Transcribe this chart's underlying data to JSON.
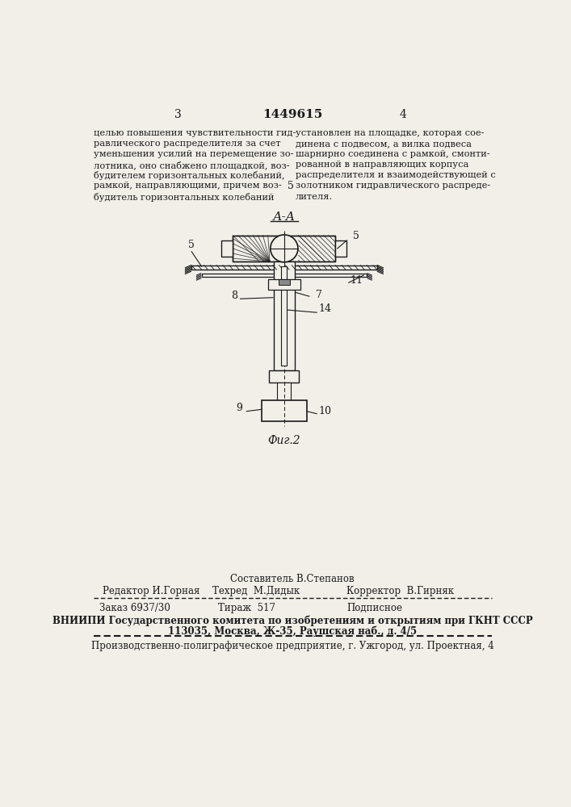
{
  "page_number_left": "3",
  "page_number_center": "1449615",
  "page_number_right": "4",
  "text_left_col": [
    "целью повышения чувствительности гид-",
    "равлического распределителя за счет",
    "уменьшения усилий на перемещение зо-",
    "лотника, оно снабжено площадкой, воз-",
    "будителем горизонтальных колебаний,",
    "рамкой, направляющими, причем воз-",
    "будитель горизонтальных колебаний"
  ],
  "text_right_col": [
    "установлен на площадке, которая сое-",
    "динена с подвесом, а вилка подвеса",
    "шарнирно соединена с рамкой, смонти-",
    "рованной в направляющих корпуса",
    "распределителя и взаимодействующей с",
    "золотником гидравлического распреде-",
    "лителя."
  ],
  "middle_number": "5",
  "fig_label": "Фиг.2",
  "section_label": "А-А",
  "part_labels": {
    "5_left": "5",
    "5_right": "5",
    "7": "7",
    "8": "8",
    "9": "9",
    "10": "10",
    "11": "11",
    "14": "14"
  },
  "footer_composer_label": "Составитель В.Степанов",
  "footer_editor": "Редактор И.Горная",
  "footer_techred": "Техред  М.Дидык",
  "footer_corrector": "Корректор  В.Гирняк",
  "footer_order": "Заказ 6937/30",
  "footer_tirazh": "Тираж  517",
  "footer_podpisnoe": "Подписное",
  "footer_vniipи": "ВНИИПИ Государственного комитета по изобретениям и открытиям при ГКНТ СССР",
  "footer_address": "113035, Москва, Ж-35, Раушская наб., д. 4/5",
  "footer_production": "Производственно-полиграфическое предприятие, г. Ужгород, ул. Проектная, 4",
  "bg_color": "#f2efe9",
  "line_color": "#1a1a1a",
  "text_color": "#1a1a1a"
}
